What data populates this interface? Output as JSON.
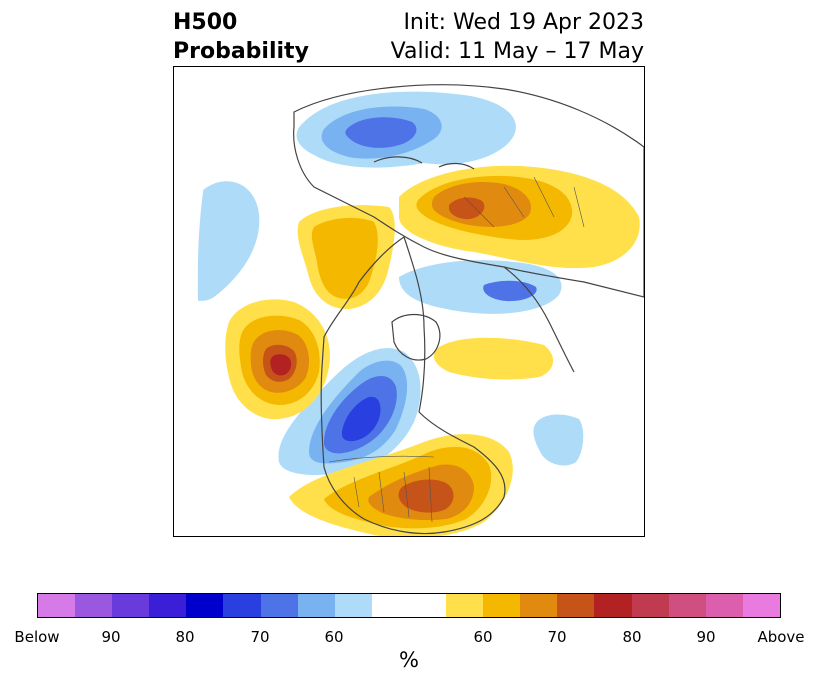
{
  "title": {
    "left_line1": "H500",
    "left_line2": "Probability",
    "right_line1": "Init: Wed 19 Apr 2023",
    "right_line2": "Valid: 11 May – 17 May"
  },
  "colorbar": {
    "label": "%",
    "ticks": [
      "Below",
      "90",
      "80",
      "70",
      "60",
      "60",
      "70",
      "80",
      "90",
      "Above"
    ],
    "colors": [
      "#d67ae8",
      "#9a57e0",
      "#6a3bdc",
      "#3a1ed8",
      "#0000cd",
      "#2a3fe0",
      "#4d73e6",
      "#78b2f0",
      "#aedcf8",
      "#ffffff",
      "#ffe04a",
      "#f5b800",
      "#e08a10",
      "#c65418",
      "#b22222",
      "#c03a50",
      "#cf5080",
      "#dc5fae",
      "#e87ae0"
    ]
  }
}
